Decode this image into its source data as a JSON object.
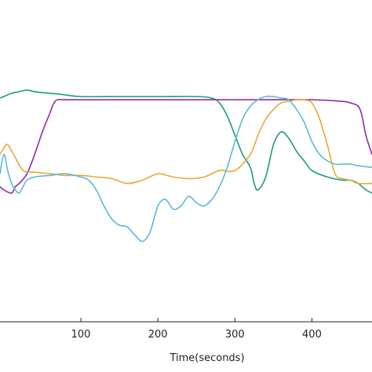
{
  "chart_data": {
    "type": "line",
    "xlabel": "Time(seconds)",
    "ylabel": "",
    "title": "",
    "xlim": [
      -5,
      478
    ],
    "ylim": [
      0,
      1
    ],
    "x_ticks": [
      100,
      200,
      300,
      400
    ],
    "x_tick_labels": [
      "100",
      "200",
      "300",
      "400"
    ],
    "grid": false,
    "legend": "none",
    "series": [
      {
        "color": "#1a9a7f",
        "x": [
          -5,
          0,
          10,
          20,
          30,
          40,
          50,
          60,
          70,
          80,
          100,
          150,
          200,
          250,
          270,
          280,
          290,
          300,
          310,
          320,
          325,
          330,
          340,
          350,
          360,
          370,
          380,
          390,
          400,
          420,
          440,
          450,
          460,
          470,
          478
        ],
        "y": [
          0.695,
          0.7,
          0.71,
          0.715,
          0.72,
          0.715,
          0.712,
          0.71,
          0.708,
          0.705,
          0.7,
          0.7,
          0.7,
          0.7,
          0.695,
          0.68,
          0.64,
          0.58,
          0.52,
          0.48,
          0.43,
          0.41,
          0.45,
          0.55,
          0.59,
          0.57,
          0.53,
          0.5,
          0.47,
          0.45,
          0.44,
          0.44,
          0.43,
          0.41,
          0.4
        ]
      },
      {
        "color": "#8e2ca8",
        "x": [
          -5,
          0,
          10,
          15,
          20,
          30,
          40,
          50,
          60,
          65,
          70,
          80,
          100,
          150,
          200,
          250,
          300,
          350,
          400,
          440,
          450,
          460,
          465,
          470,
          478
        ],
        "y": [
          0.42,
          0.41,
          0.4,
          0.42,
          0.43,
          0.46,
          0.52,
          0.59,
          0.65,
          0.68,
          0.69,
          0.69,
          0.69,
          0.69,
          0.69,
          0.69,
          0.69,
          0.69,
          0.69,
          0.685,
          0.68,
          0.67,
          0.64,
          0.58,
          0.52
        ]
      },
      {
        "color": "#e8a838",
        "x": [
          -5,
          0,
          5,
          15,
          25,
          40,
          60,
          80,
          100,
          120,
          140,
          160,
          180,
          200,
          220,
          240,
          260,
          280,
          300,
          320,
          330,
          340,
          350,
          360,
          370,
          380,
          390,
          400,
          410,
          420,
          430,
          440,
          450,
          460,
          478
        ],
        "y": [
          0.52,
          0.54,
          0.55,
          0.51,
          0.47,
          0.465,
          0.46,
          0.455,
          0.455,
          0.45,
          0.445,
          0.43,
          0.44,
          0.46,
          0.45,
          0.445,
          0.45,
          0.47,
          0.47,
          0.52,
          0.58,
          0.63,
          0.66,
          0.68,
          0.685,
          0.69,
          0.69,
          0.68,
          0.63,
          0.55,
          0.46,
          0.445,
          0.44,
          0.43,
          0.43
        ]
      },
      {
        "color": "#5bb8d9",
        "x": [
          -5,
          0,
          5,
          10,
          15,
          20,
          25,
          30,
          40,
          60,
          80,
          100,
          110,
          120,
          130,
          140,
          150,
          160,
          170,
          180,
          190,
          200,
          210,
          220,
          230,
          240,
          250,
          260,
          270,
          280,
          290,
          300,
          310,
          320,
          330,
          340,
          350,
          360,
          370,
          380,
          390,
          400,
          410,
          420,
          430,
          440,
          450,
          460,
          478
        ],
        "y": [
          0.46,
          0.52,
          0.47,
          0.43,
          0.41,
          0.4,
          0.42,
          0.44,
          0.45,
          0.455,
          0.46,
          0.45,
          0.44,
          0.41,
          0.36,
          0.32,
          0.3,
          0.295,
          0.27,
          0.25,
          0.28,
          0.36,
          0.38,
          0.35,
          0.36,
          0.39,
          0.37,
          0.36,
          0.38,
          0.42,
          0.48,
          0.56,
          0.63,
          0.67,
          0.69,
          0.7,
          0.7,
          0.695,
          0.69,
          0.66,
          0.62,
          0.56,
          0.52,
          0.5,
          0.49,
          0.49,
          0.49,
          0.485,
          0.48
        ]
      }
    ]
  }
}
